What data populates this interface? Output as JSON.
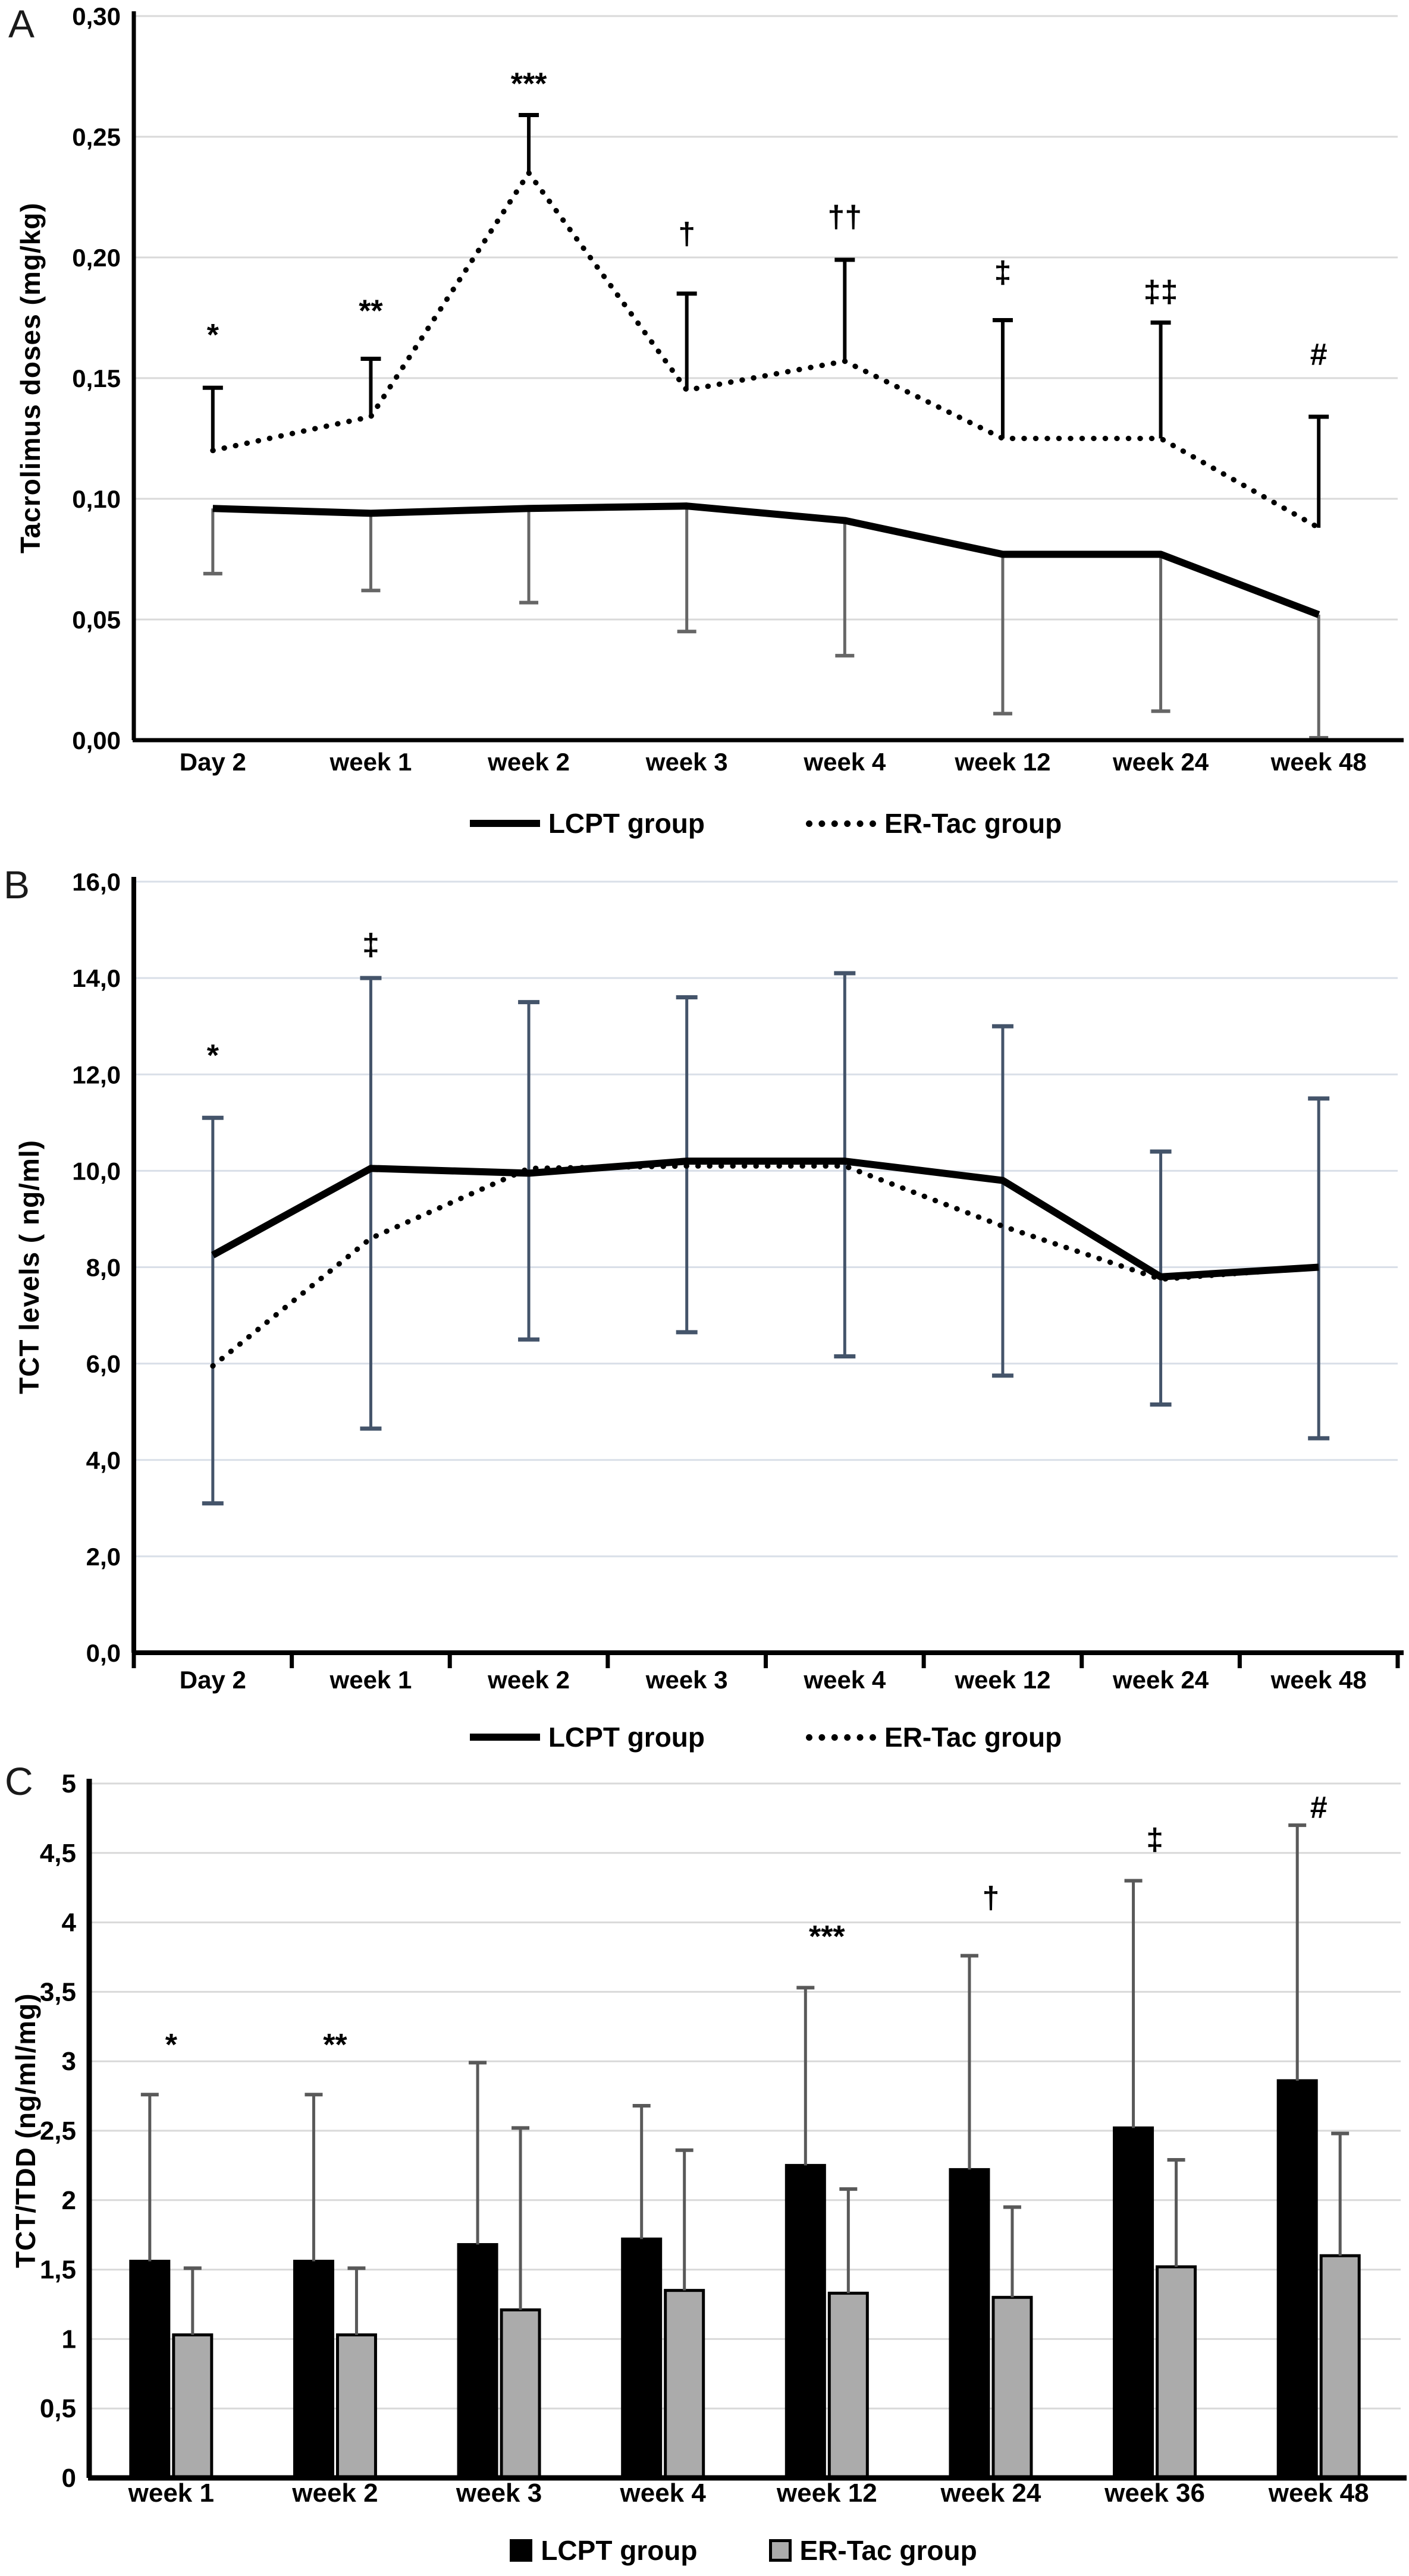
{
  "colors": {
    "line_color": "#000000",
    "bar_lcpt_fill": "#000000",
    "bar_ertac_fill": "#ababab",
    "error_bar_panel_a_upper": "#000000",
    "error_bar_panel_a_lower": "#666666",
    "error_bar_panel_b": "#44546a",
    "error_bar_panel_c": "#595959",
    "axis_color": "#000000",
    "grid_light": "#d9d9d9",
    "grid_blue": "#d9dfe8"
  },
  "chart_data": [
    {
      "type": "line",
      "panel_label": "A",
      "ylabel": "Tacrolimus doses (mg/kg)",
      "xlabel": "",
      "ylim": [
        0,
        0.3
      ],
      "yticks": [
        0,
        0.05,
        0.1,
        0.15,
        0.2,
        0.25,
        0.3
      ],
      "ytick_labels": [
        "0,00",
        "0,05",
        "0,10",
        "0,15",
        "0,20",
        "0,25",
        "0,30"
      ],
      "categories": [
        "Day 2",
        "week 1",
        "week 2",
        "week 3",
        "week 4",
        "week 12",
        "week 24",
        "week 48"
      ],
      "grid": true,
      "grid_color": "#d9d9d9",
      "boundary_ticks": false,
      "legend_position": "bottom",
      "series": [
        {
          "name": "LCPT group",
          "style": "solid",
          "values": [
            0.096,
            0.094,
            0.096,
            0.097,
            0.091,
            0.077,
            0.077,
            0.052
          ],
          "err_low": [
            0.069,
            0.062,
            0.057,
            0.045,
            0.035,
            0.011,
            0.012,
            0.001
          ]
        },
        {
          "name": "ER-Tac group",
          "style": "dotted",
          "values": [
            0.12,
            0.134,
            0.235,
            0.145,
            0.157,
            0.125,
            0.125,
            0.088
          ],
          "err_high": [
            0.146,
            0.158,
            0.259,
            0.185,
            0.199,
            0.174,
            0.173,
            0.134
          ]
        }
      ],
      "annotations": [
        {
          "cat": 0,
          "text": "*",
          "y": 0.168
        },
        {
          "cat": 1,
          "text": "**",
          "y": 0.178
        },
        {
          "cat": 2,
          "text": "***",
          "y": 0.272
        },
        {
          "cat": 3,
          "text": "†",
          "y": 0.21
        },
        {
          "cat": 4,
          "text": "††",
          "y": 0.217
        },
        {
          "cat": 5,
          "text": "‡",
          "y": 0.194
        },
        {
          "cat": 6,
          "text": "‡‡",
          "y": 0.186
        },
        {
          "cat": 7,
          "text": "#",
          "y": 0.16
        }
      ]
    },
    {
      "type": "line",
      "panel_label": "B",
      "ylabel": "TCT levels ( ng/ml)",
      "xlabel": "",
      "ylim": [
        0,
        16
      ],
      "yticks": [
        0,
        2,
        4,
        6,
        8,
        10,
        12,
        14,
        16
      ],
      "ytick_labels": [
        "0,0",
        "2,0",
        "4,0",
        "6,0",
        "8,0",
        "10,0",
        "12,0",
        "14,0",
        "16,0"
      ],
      "categories": [
        "Day 2",
        "week 1",
        "week 2",
        "week 3",
        "week 4",
        "week 12",
        "week 24",
        "week 48"
      ],
      "grid": true,
      "grid_color": "#d9dfe8",
      "boundary_ticks": true,
      "legend_position": "bottom",
      "series": [
        {
          "name": "LCPT group",
          "style": "solid",
          "values": [
            8.25,
            10.05,
            9.95,
            10.2,
            10.2,
            9.8,
            7.8,
            8.0
          ]
        },
        {
          "name": "ER-Tac group",
          "style": "dotted",
          "values": [
            5.95,
            8.6,
            10.05,
            10.1,
            10.1,
            8.85,
            7.75,
            8.0
          ]
        }
      ],
      "error_bars": {
        "lo": [
          3.1,
          4.65,
          6.5,
          6.65,
          6.15,
          5.75,
          5.15,
          4.45
        ],
        "hi": [
          11.1,
          14.0,
          13.5,
          13.6,
          14.1,
          13.0,
          10.4,
          11.5
        ]
      },
      "annotations": [
        {
          "cat": 0,
          "text": "*",
          "y": 12.4
        },
        {
          "cat": 1,
          "text": "‡",
          "y": 14.7
        }
      ]
    },
    {
      "type": "bar",
      "panel_label": "C",
      "ylabel": "TCT/TDD (ng/ml/mg)",
      "xlabel": "",
      "ylim": [
        0,
        5
      ],
      "yticks": [
        0,
        0.5,
        1,
        1.5,
        2,
        2.5,
        3,
        3.5,
        4,
        4.5,
        5
      ],
      "ytick_labels": [
        "0",
        "0,5",
        "1",
        "1,5",
        "2",
        "2,5",
        "3",
        "3,5",
        "4",
        "4,5",
        "5"
      ],
      "categories": [
        "week 1",
        "week 2",
        "week 3",
        "week 4",
        "week 12",
        "week 24",
        "week 36",
        "week 48"
      ],
      "grid": true,
      "grid_color": "#d9d9d9",
      "boundary_ticks": false,
      "legend_position": "bottom",
      "series": [
        {
          "name": "LCPT group",
          "fill": "#000000",
          "values": [
            1.56,
            1.56,
            1.68,
            1.72,
            2.25,
            2.22,
            2.52,
            2.86
          ],
          "err_top": [
            2.76,
            2.76,
            2.99,
            2.68,
            3.53,
            3.76,
            4.3,
            4.7
          ]
        },
        {
          "name": "ER-Tac group",
          "fill": "#ababab",
          "values": [
            1.03,
            1.03,
            1.21,
            1.35,
            1.33,
            1.3,
            1.52,
            1.6
          ],
          "err_top": [
            1.51,
            1.51,
            2.52,
            2.36,
            2.08,
            1.95,
            2.29,
            2.48
          ]
        }
      ],
      "annotations": [
        {
          "cat": 0,
          "text": "*",
          "y": 3.12
        },
        {
          "cat": 1,
          "text": "**",
          "y": 3.12
        },
        {
          "cat": 4,
          "text": "***",
          "y": 3.9
        },
        {
          "cat": 5,
          "text": "†",
          "y": 4.18
        },
        {
          "cat": 6,
          "text": "‡",
          "y": 4.6
        },
        {
          "cat": 7,
          "text": "#",
          "y": 4.83
        }
      ]
    }
  ]
}
